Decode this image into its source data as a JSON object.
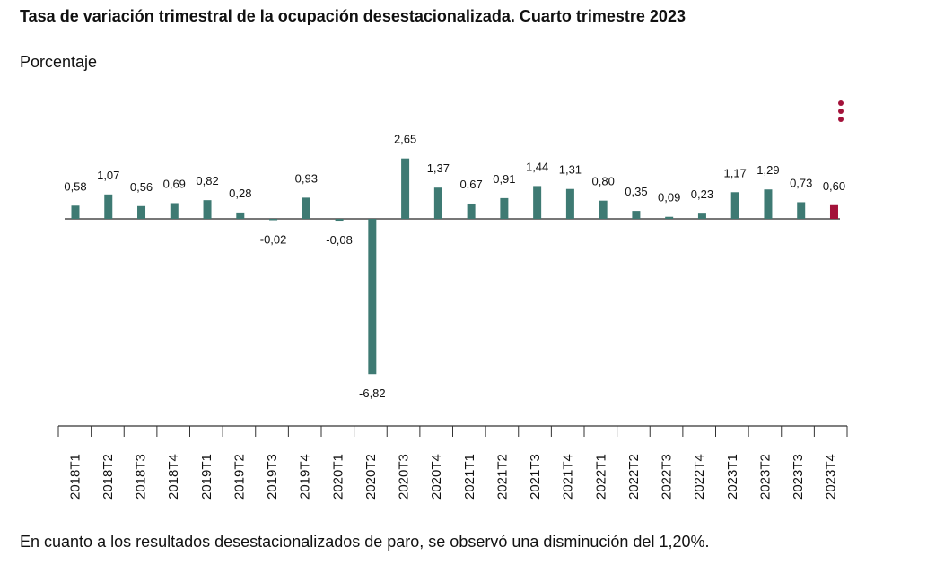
{
  "header": {
    "title": "Tasa de variación trimestral de la ocupación desestacionalizada. Cuarto trimestre 2023",
    "subtitle": "Porcentaje"
  },
  "footer": {
    "text": "En cuanto a los resultados desestacionalizados de paro, se observó una disminución del 1,20%."
  },
  "menu": {
    "icon": "more-vertical-icon",
    "color": "#a3123a"
  },
  "chart_data": {
    "type": "bar",
    "categories": [
      "2018T1",
      "2018T2",
      "2018T3",
      "2018T4",
      "2019T1",
      "2019T2",
      "2019T3",
      "2019T4",
      "2020T1",
      "2020T2",
      "2020T3",
      "2020T4",
      "2021T1",
      "2021T2",
      "2021T3",
      "2021T4",
      "2022T1",
      "2022T2",
      "2022T3",
      "2022T4",
      "2023T1",
      "2023T2",
      "2023T3",
      "2023T4"
    ],
    "values": [
      0.58,
      1.07,
      0.56,
      0.69,
      0.82,
      0.28,
      -0.02,
      0.93,
      -0.08,
      -6.82,
      2.65,
      1.37,
      0.67,
      0.91,
      1.44,
      1.31,
      0.8,
      0.35,
      0.09,
      0.23,
      1.17,
      1.29,
      0.73,
      0.6
    ],
    "labels": [
      "0,58",
      "1,07",
      "0,56",
      "0,69",
      "0,82",
      "0,28",
      "-0,02",
      "0,93",
      "-0,08",
      "-6,82",
      "2,65",
      "1,37",
      "0,67",
      "0,91",
      "1,44",
      "1,31",
      "0,80",
      "0,35",
      "0,09",
      "0,23",
      "1,17",
      "1,29",
      "0,73",
      "0,60"
    ],
    "colors": {
      "bar": "#3e7a73",
      "highlight": "#a3123a",
      "axis": "#777777"
    },
    "highlight_index": 23,
    "ylabel": "Porcentaje",
    "grid": false,
    "legend": "none"
  }
}
